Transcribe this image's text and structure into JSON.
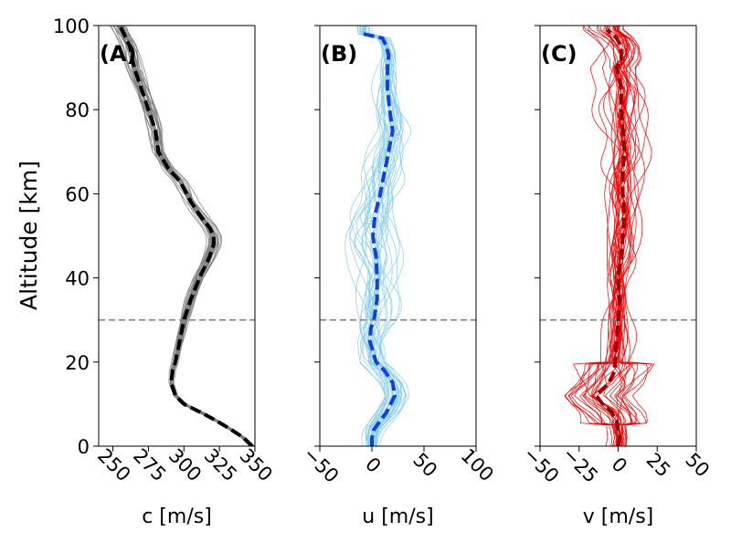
{
  "figure": {
    "ylabel": "Altitude [km]",
    "yticks": [
      0,
      20,
      40,
      60,
      80,
      100
    ],
    "ylim": [
      0,
      100
    ],
    "reference_altitude_km": 30,
    "reference_line_color": "#808080"
  },
  "chart_data": [
    {
      "type": "line",
      "panel_label": "(A)",
      "xlabel": "c [m/s]",
      "xlim": [
        240,
        350
      ],
      "xticks": [
        250,
        275,
        300,
        325,
        350
      ],
      "ensemble_color": "#7f7f7f",
      "mean_color": "#000000",
      "ensemble_count": 30,
      "altitude_km": [
        0,
        2,
        4,
        6,
        8,
        10,
        12,
        15,
        18,
        20,
        25,
        30,
        35,
        40,
        45,
        48,
        50,
        52,
        55,
        58,
        60,
        63,
        66,
        70,
        75,
        80,
        85,
        90,
        95,
        100
      ],
      "mean_profile": [
        348,
        342,
        333,
        323,
        312,
        300,
        294,
        291,
        292,
        294,
        297,
        300,
        305,
        311,
        318,
        321,
        321,
        318,
        311,
        305,
        302,
        297,
        289,
        282,
        280,
        275,
        270,
        265,
        262,
        255
      ]
    },
    {
      "type": "line",
      "panel_label": "(B)",
      "xlabel": "u [m/s]",
      "xlim": [
        -50,
        100
      ],
      "xticks": [
        -50,
        0,
        50,
        100
      ],
      "ensemble_color": "#87ceeb",
      "mean_color": "#1040dd",
      "ensemble_count": 30,
      "altitude_km": [
        0,
        2,
        4,
        6,
        8,
        10,
        12,
        15,
        18,
        20,
        25,
        28,
        30,
        35,
        40,
        45,
        48,
        50,
        55,
        60,
        65,
        70,
        75,
        80,
        85,
        90,
        93,
        95,
        97,
        98
      ],
      "mean_profile": [
        0,
        0,
        2,
        8,
        14,
        18,
        22,
        20,
        12,
        4,
        -2,
        -1,
        2,
        5,
        5,
        4,
        2,
        1,
        3,
        8,
        12,
        16,
        20,
        17,
        15,
        15,
        16,
        14,
        10,
        -8
      ]
    },
    {
      "type": "line",
      "panel_label": "(C)",
      "xlabel": "v [m/s]",
      "xlim": [
        -50,
        50
      ],
      "xticks": [
        -50,
        -25,
        0,
        25,
        50
      ],
      "ensemble_color": "#ee0000",
      "mean_color": "#990000",
      "ensemble_count": 30,
      "altitude_km": [
        0,
        2,
        4,
        6,
        8,
        10,
        12,
        15,
        18,
        20,
        25,
        30,
        35,
        40,
        45,
        50,
        55,
        60,
        65,
        70,
        75,
        80,
        85,
        88,
        90,
        92,
        95,
        97,
        98,
        99
      ],
      "mean_profile": [
        0,
        1,
        0,
        -1,
        -4,
        -10,
        -14,
        -6,
        -2,
        -2,
        -1,
        0,
        1,
        0,
        2,
        3,
        4,
        3,
        3,
        4,
        3,
        2,
        2,
        0,
        -1,
        2,
        2,
        -1,
        -4,
        -7
      ]
    }
  ]
}
